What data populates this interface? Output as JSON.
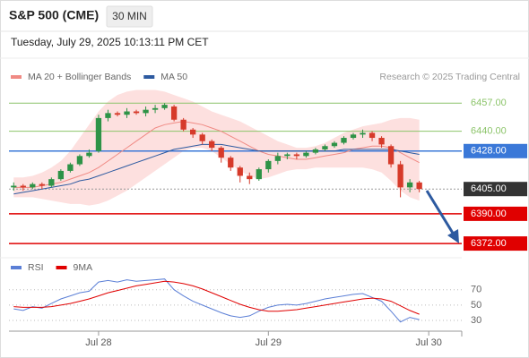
{
  "header": {
    "symbol": "S&P 500 (CME)",
    "interval": "30 MIN",
    "timestamp": "Tuesday, July 29, 2025 10:13:11 PM CET"
  },
  "chart_data": [
    {
      "type": "candlestick",
      "credit": "Research © 2025 Trading Central",
      "up_color": "#2e9347",
      "down_color": "#d63a2a",
      "xlim": [
        0,
        48
      ],
      "ylim": [
        6365,
        6468
      ],
      "open": [
        6406,
        6407,
        6406,
        6408,
        6407,
        6411,
        6416,
        6420,
        6425,
        6428,
        6448,
        6451,
        6450,
        6452,
        6451,
        6453,
        6454,
        6455,
        6447,
        6441,
        6438,
        6434,
        6430,
        6424,
        6418,
        6413,
        6411,
        6417,
        6422,
        6425,
        6426,
        6425,
        6427,
        6429,
        6431,
        6433,
        6436,
        6438,
        6439,
        6436,
        6431,
        6420,
        6406,
        6409
      ],
      "high": [
        6409,
        6408,
        6409,
        6409,
        6412,
        6417,
        6421,
        6426,
        6429,
        6450,
        6453,
        6452,
        6454,
        6453,
        6455,
        6456,
        6457,
        6456,
        6448,
        6442,
        6439,
        6435,
        6431,
        6425,
        6419,
        6415,
        6418,
        6423,
        6427,
        6427,
        6427,
        6428,
        6430,
        6432,
        6434,
        6437,
        6439,
        6441,
        6440,
        6437,
        6432,
        6422,
        6411,
        6410
      ],
      "low": [
        6404,
        6404,
        6405,
        6405,
        6406,
        6410,
        6415,
        6419,
        6424,
        6427,
        6446,
        6449,
        6448,
        6450,
        6449,
        6451,
        6453,
        6446,
        6440,
        6436,
        6432,
        6428,
        6421,
        6416,
        6409,
        6408,
        6410,
        6415,
        6420,
        6423,
        6423,
        6424,
        6426,
        6428,
        6430,
        6432,
        6435,
        6436,
        6434,
        6430,
        6418,
        6400,
        6403,
        6403
      ],
      "close": [
        6407,
        6406,
        6408,
        6407,
        6411,
        6416,
        6420,
        6425,
        6427,
        6448,
        6451,
        6450,
        6452,
        6451,
        6453,
        6454,
        6456,
        6447,
        6441,
        6438,
        6434,
        6430,
        6424,
        6418,
        6413,
        6411,
        6417,
        6422,
        6425,
        6426,
        6425,
        6427,
        6429,
        6431,
        6433,
        6436,
        6438,
        6439,
        6436,
        6432,
        6420,
        6406,
        6409,
        6405
      ],
      "series": [
        {
          "name": "MA 20 + Bollinger Bands",
          "color": "#f08a84",
          "band_color": "#fde0df",
          "values": [
            6406,
            6406,
            6406,
            6407,
            6408,
            6409,
            6411,
            6413,
            6415,
            6418,
            6422,
            6426,
            6430,
            6434,
            6438,
            6442,
            6444,
            6445,
            6446,
            6445,
            6444,
            6442,
            6440,
            6437,
            6434,
            6431,
            6428,
            6426,
            6425,
            6424,
            6423,
            6423,
            6424,
            6425,
            6426,
            6427,
            6429,
            6430,
            6431,
            6431,
            6430,
            6427,
            6424,
            6421
          ],
          "upper": [
            6412,
            6412,
            6413,
            6415,
            6418,
            6422,
            6428,
            6436,
            6444,
            6452,
            6458,
            6462,
            6464,
            6465,
            6465,
            6465,
            6464,
            6462,
            6460,
            6458,
            6455,
            6452,
            6450,
            6448,
            6446,
            6443,
            6440,
            6437,
            6434,
            6432,
            6430,
            6430,
            6431,
            6433,
            6436,
            6439,
            6441,
            6443,
            6444,
            6445,
            6447,
            6448,
            6448,
            6447
          ],
          "lower": [
            6400,
            6400,
            6400,
            6399,
            6398,
            6397,
            6396,
            6396,
            6395,
            6396,
            6398,
            6401,
            6404,
            6408,
            6412,
            6416,
            6420,
            6424,
            6428,
            6430,
            6430,
            6428,
            6424,
            6420,
            6416,
            6413,
            6411,
            6412,
            6414,
            6416,
            6417,
            6417,
            6418,
            6418,
            6418,
            6418,
            6418,
            6418,
            6417,
            6415,
            6410,
            6404,
            6400,
            6398
          ]
        },
        {
          "name": "MA 50",
          "color": "#2d5aa0",
          "values": [
            6402,
            6403,
            6404,
            6405,
            6406,
            6407,
            6408,
            6410,
            6411,
            6413,
            6415,
            6417,
            6419,
            6421,
            6423,
            6425,
            6427,
            6429,
            6430,
            6431,
            6432,
            6432,
            6432,
            6431,
            6430,
            6429,
            6428,
            6428,
            6428,
            6428,
            6428,
            6428,
            6428,
            6428,
            6428,
            6429,
            6429,
            6429,
            6429,
            6429,
            6429,
            6428,
            6427,
            6426
          ]
        }
      ],
      "levels": [
        {
          "value": 6457,
          "label": "6457.00",
          "color": "#8cc46a",
          "boxed": false,
          "dashed": false
        },
        {
          "value": 6440,
          "label": "6440.00",
          "color": "#8cc46a",
          "boxed": false,
          "dashed": false
        },
        {
          "value": 6428,
          "label": "6428.00",
          "color": "#3a78d8",
          "boxed": true,
          "dashed": false
        },
        {
          "value": 6405,
          "label": "6405.00",
          "color": "#333333",
          "boxed": true,
          "dashed": true
        },
        {
          "value": 6390,
          "label": "6390.00",
          "color": "#e00000",
          "boxed": true,
          "dashed": false
        },
        {
          "value": 6372,
          "label": "6372.00",
          "color": "#e00000",
          "boxed": true,
          "dashed": false
        }
      ]
    },
    {
      "type": "line",
      "xlim": [
        0,
        48
      ],
      "ylim": [
        16,
        86
      ],
      "yticks": [
        30,
        50,
        70
      ],
      "xticks": [
        {
          "value": 9.5,
          "label": "Jul 28"
        },
        {
          "value": 27.5,
          "label": "Jul 29"
        },
        {
          "value": 44.5,
          "label": "Jul 30"
        }
      ],
      "series": [
        {
          "name": "RSI",
          "color": "#5b7fd6",
          "values": [
            45,
            43,
            48,
            46,
            52,
            58,
            62,
            66,
            68,
            80,
            82,
            80,
            83,
            81,
            82,
            83,
            84,
            70,
            62,
            55,
            50,
            45,
            40,
            36,
            34,
            36,
            42,
            47,
            50,
            51,
            50,
            52,
            55,
            58,
            60,
            62,
            64,
            65,
            60,
            55,
            42,
            28,
            34,
            31
          ]
        },
        {
          "name": "9MA",
          "color": "#e00000",
          "values": [
            48,
            47,
            47,
            47,
            48,
            50,
            52,
            55,
            58,
            62,
            66,
            69,
            72,
            75,
            77,
            79,
            81,
            80,
            78,
            75,
            71,
            66,
            61,
            56,
            51,
            47,
            44,
            42,
            42,
            43,
            44,
            46,
            48,
            50,
            52,
            54,
            56,
            58,
            59,
            58,
            55,
            49,
            43,
            38
          ]
        }
      ]
    }
  ]
}
